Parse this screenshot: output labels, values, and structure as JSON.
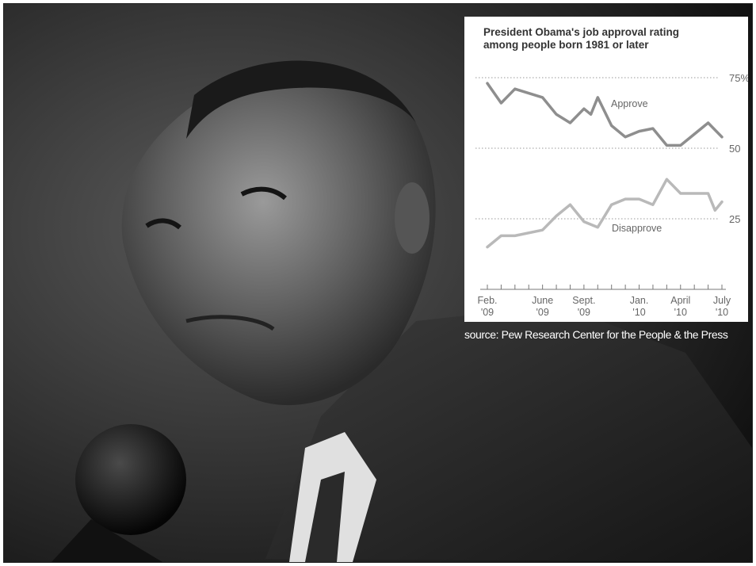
{
  "source_text": "source: Pew Research Center for the People & the Press",
  "colors": {
    "approve_line": "#8e8e8e",
    "disapprove_line": "#b9b9b9",
    "grid": "#9a9a9a",
    "label": "#666666"
  },
  "chart_data": {
    "type": "line",
    "title_line1": "President Obama's job approval rating",
    "title_line2": "among people born 1981 or later",
    "ylim": [
      10,
      75
    ],
    "y_gridlines": [
      75,
      50,
      25
    ],
    "y_tick_labels": [
      "75%",
      "50",
      "25"
    ],
    "x_tick_labels": [
      {
        "month": "Feb.",
        "year": "'09"
      },
      {
        "month": "June",
        "year": "'09"
      },
      {
        "month": "Sept.",
        "year": "'09"
      },
      {
        "month": "Jan.",
        "year": "'10"
      },
      {
        "month": "April",
        "year": "'10"
      },
      {
        "month": "July",
        "year": "'10"
      }
    ],
    "x_tick_months": [
      "Feb. '09",
      "June '09",
      "Sept. '09",
      "Jan. '10",
      "April '10",
      "July '10"
    ],
    "series": [
      {
        "name": "Approve",
        "points": [
          {
            "x": "Feb. '09",
            "y": 73
          },
          {
            "x": "Mar. '09",
            "y": 66
          },
          {
            "x": "Apr. '09",
            "y": 71
          },
          {
            "x": "June '09",
            "y": 68
          },
          {
            "x": "July '09",
            "y": 62
          },
          {
            "x": "Aug. '09",
            "y": 59
          },
          {
            "x": "Sept. '09",
            "y": 64
          },
          {
            "x": "Sept. '09 (late)",
            "y": 62
          },
          {
            "x": "Oct. '09",
            "y": 68
          },
          {
            "x": "Nov. '09",
            "y": 58
          },
          {
            "x": "Dec. '09",
            "y": 54
          },
          {
            "x": "Jan. '10",
            "y": 56
          },
          {
            "x": "Feb. '10",
            "y": 57
          },
          {
            "x": "Mar. '10",
            "y": 51
          },
          {
            "x": "April '10",
            "y": 51
          },
          {
            "x": "June '10",
            "y": 59
          },
          {
            "x": "July '10",
            "y": 54
          }
        ]
      },
      {
        "name": "Disapprove",
        "points": [
          {
            "x": "Feb. '09",
            "y": 15
          },
          {
            "x": "Mar. '09",
            "y": 19
          },
          {
            "x": "Apr. '09",
            "y": 19
          },
          {
            "x": "June '09",
            "y": 21
          },
          {
            "x": "July '09",
            "y": 26
          },
          {
            "x": "Aug. '09",
            "y": 30
          },
          {
            "x": "Sept. '09",
            "y": 24
          },
          {
            "x": "Oct. '09",
            "y": 22
          },
          {
            "x": "Nov. '09",
            "y": 30
          },
          {
            "x": "Dec. '09",
            "y": 32
          },
          {
            "x": "Jan. '10",
            "y": 32
          },
          {
            "x": "Feb. '10",
            "y": 30
          },
          {
            "x": "Mar. '10",
            "y": 39
          },
          {
            "x": "April '10",
            "y": 34
          },
          {
            "x": "May '10",
            "y": 34
          },
          {
            "x": "June '10",
            "y": 34
          },
          {
            "x": "June '10 (late)",
            "y": 28
          },
          {
            "x": "July '10",
            "y": 31
          }
        ]
      }
    ]
  }
}
